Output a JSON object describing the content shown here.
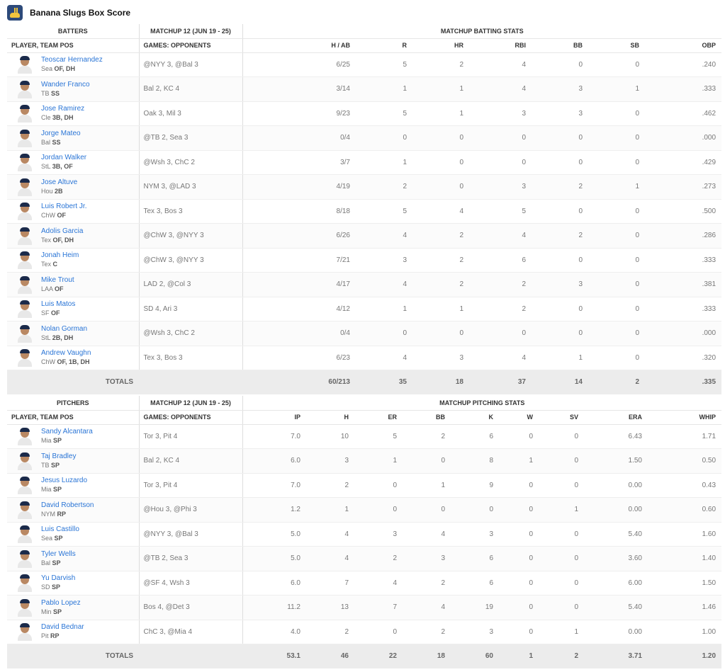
{
  "title": "Banana Slugs Box Score",
  "batting": {
    "group_headers": [
      "BATTERS",
      "MATCHUP 12 (JUN 19 - 25)",
      "MATCHUP BATTING STATS"
    ],
    "columns": [
      "PLAYER, TEAM POS",
      "GAMES: OPPONENTS",
      "H / AB",
      "R",
      "HR",
      "RBI",
      "BB",
      "SB",
      "OBP"
    ],
    "rows": [
      {
        "name": "Teoscar Hernandez",
        "team": "Sea",
        "pos": "OF, DH",
        "opp": "@NYY 3, @Bal 3",
        "stats": [
          "6/25",
          "5",
          "2",
          "4",
          "0",
          "0",
          ".240"
        ]
      },
      {
        "name": "Wander Franco",
        "team": "TB",
        "pos": "SS",
        "opp": "Bal 2, KC 4",
        "stats": [
          "3/14",
          "1",
          "1",
          "4",
          "3",
          "1",
          ".333"
        ]
      },
      {
        "name": "Jose Ramirez",
        "team": "Cle",
        "pos": "3B, DH",
        "opp": "Oak 3, Mil 3",
        "stats": [
          "9/23",
          "5",
          "1",
          "3",
          "3",
          "0",
          ".462"
        ]
      },
      {
        "name": "Jorge Mateo",
        "team": "Bal",
        "pos": "SS",
        "opp": "@TB 2, Sea 3",
        "stats": [
          "0/4",
          "0",
          "0",
          "0",
          "0",
          "0",
          ".000"
        ]
      },
      {
        "name": "Jordan Walker",
        "team": "StL",
        "pos": "3B, OF",
        "opp": "@Wsh 3, ChC 2",
        "stats": [
          "3/7",
          "1",
          "0",
          "0",
          "0",
          "0",
          ".429"
        ]
      },
      {
        "name": "Jose Altuve",
        "team": "Hou",
        "pos": "2B",
        "opp": "NYM 3, @LAD 3",
        "stats": [
          "4/19",
          "2",
          "0",
          "3",
          "2",
          "1",
          ".273"
        ]
      },
      {
        "name": "Luis Robert Jr.",
        "team": "ChW",
        "pos": "OF",
        "opp": "Tex 3, Bos 3",
        "stats": [
          "8/18",
          "5",
          "4",
          "5",
          "0",
          "0",
          ".500"
        ]
      },
      {
        "name": "Adolis Garcia",
        "team": "Tex",
        "pos": "OF, DH",
        "opp": "@ChW 3, @NYY 3",
        "stats": [
          "6/26",
          "4",
          "2",
          "4",
          "2",
          "0",
          ".286"
        ]
      },
      {
        "name": "Jonah Heim",
        "team": "Tex",
        "pos": "C",
        "opp": "@ChW 3, @NYY 3",
        "stats": [
          "7/21",
          "3",
          "2",
          "6",
          "0",
          "0",
          ".333"
        ]
      },
      {
        "name": "Mike Trout",
        "team": "LAA",
        "pos": "OF",
        "opp": "LAD 2, @Col 3",
        "stats": [
          "4/17",
          "4",
          "2",
          "2",
          "3",
          "0",
          ".381"
        ]
      },
      {
        "name": "Luis Matos",
        "team": "SF",
        "pos": "OF",
        "opp": "SD 4, Ari 3",
        "stats": [
          "4/12",
          "1",
          "1",
          "2",
          "0",
          "0",
          ".333"
        ]
      },
      {
        "name": "Nolan Gorman",
        "team": "StL",
        "pos": "2B, DH",
        "opp": "@Wsh 3, ChC 2",
        "stats": [
          "0/4",
          "0",
          "0",
          "0",
          "0",
          "0",
          ".000"
        ]
      },
      {
        "name": "Andrew Vaughn",
        "team": "ChW",
        "pos": "OF, 1B, DH",
        "opp": "Tex 3, Bos 3",
        "stats": [
          "6/23",
          "4",
          "3",
          "4",
          "1",
          "0",
          ".320"
        ]
      }
    ],
    "totals_label": "TOTALS",
    "totals": [
      "60/213",
      "35",
      "18",
      "37",
      "14",
      "2",
      ".335"
    ]
  },
  "pitching": {
    "group_headers": [
      "PITCHERS",
      "MATCHUP 12 (JUN 19 - 25)",
      "MATCHUP PITCHING STATS"
    ],
    "columns": [
      "PLAYER, TEAM POS",
      "GAMES: OPPONENTS",
      "IP",
      "H",
      "ER",
      "BB",
      "K",
      "W",
      "SV",
      "ERA",
      "WHIP"
    ],
    "rows": [
      {
        "name": "Sandy Alcantara",
        "team": "Mia",
        "pos": "SP",
        "opp": "Tor 3, Pit 4",
        "stats": [
          "7.0",
          "10",
          "5",
          "2",
          "6",
          "0",
          "0",
          "6.43",
          "1.71"
        ]
      },
      {
        "name": "Taj Bradley",
        "team": "TB",
        "pos": "SP",
        "opp": "Bal 2, KC 4",
        "stats": [
          "6.0",
          "3",
          "1",
          "0",
          "8",
          "1",
          "0",
          "1.50",
          "0.50"
        ]
      },
      {
        "name": "Jesus Luzardo",
        "team": "Mia",
        "pos": "SP",
        "opp": "Tor 3, Pit 4",
        "stats": [
          "7.0",
          "2",
          "0",
          "1",
          "9",
          "0",
          "0",
          "0.00",
          "0.43"
        ]
      },
      {
        "name": "David Robertson",
        "team": "NYM",
        "pos": "RP",
        "opp": "@Hou 3, @Phi 3",
        "stats": [
          "1.2",
          "1",
          "0",
          "0",
          "0",
          "0",
          "1",
          "0.00",
          "0.60"
        ]
      },
      {
        "name": "Luis Castillo",
        "team": "Sea",
        "pos": "SP",
        "opp": "@NYY 3, @Bal 3",
        "stats": [
          "5.0",
          "4",
          "3",
          "4",
          "3",
          "0",
          "0",
          "5.40",
          "1.60"
        ]
      },
      {
        "name": "Tyler Wells",
        "team": "Bal",
        "pos": "SP",
        "opp": "@TB 2, Sea 3",
        "stats": [
          "5.0",
          "4",
          "2",
          "3",
          "6",
          "0",
          "0",
          "3.60",
          "1.40"
        ]
      },
      {
        "name": "Yu Darvish",
        "team": "SD",
        "pos": "SP",
        "opp": "@SF 4, Wsh 3",
        "stats": [
          "6.0",
          "7",
          "4",
          "2",
          "6",
          "0",
          "0",
          "6.00",
          "1.50"
        ]
      },
      {
        "name": "Pablo Lopez",
        "team": "Min",
        "pos": "SP",
        "opp": "Bos 4, @Det 3",
        "stats": [
          "11.2",
          "13",
          "7",
          "4",
          "19",
          "0",
          "0",
          "5.40",
          "1.46"
        ]
      },
      {
        "name": "David Bednar",
        "team": "Pit",
        "pos": "RP",
        "opp": "ChC 3, @Mia 4",
        "stats": [
          "4.0",
          "2",
          "0",
          "2",
          "3",
          "0",
          "1",
          "0.00",
          "1.00"
        ]
      }
    ],
    "totals_label": "TOTALS",
    "totals": [
      "53.1",
      "46",
      "22",
      "18",
      "60",
      "1",
      "2",
      "3.71",
      "1.20"
    ]
  },
  "colors": {
    "player_link": "#2a75d6",
    "totals_bg": "#ececec",
    "logo_bg": "#2d4a7a",
    "logo_slug": "#f2c53d"
  },
  "icons": {
    "team_logo": "banana-slug-logo-icon",
    "player_photo": "player-headshot-icon"
  }
}
